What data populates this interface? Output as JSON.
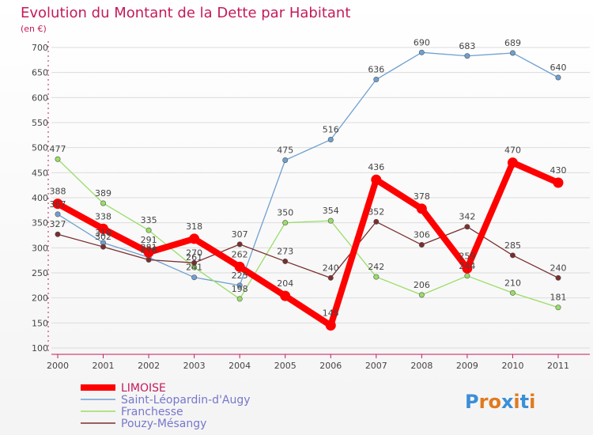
{
  "chart_data": {
    "type": "line",
    "title": "Evolution du Montant de la Dette par Habitant",
    "subtitle": "(en €)",
    "x": [
      "2000",
      "2001",
      "2002",
      "2003",
      "2004",
      "2005",
      "2006",
      "2007",
      "2008",
      "2009",
      "2010",
      "2011"
    ],
    "ylim": [
      100,
      700
    ],
    "yticks": [
      100,
      150,
      200,
      250,
      300,
      350,
      400,
      450,
      500,
      550,
      600,
      650,
      700
    ],
    "grid": "horizontal",
    "legend_position": "bottom-left",
    "series": [
      {
        "name": "Saint-Léopardin-d'Augy",
        "color": "#6fa0d0",
        "values": [
          367,
          310,
          281,
          241,
          225,
          475,
          516,
          636,
          690,
          683,
          689,
          640
        ],
        "labels": [
          "367",
          "310",
          "281",
          "241",
          "225",
          "475",
          "516",
          "636",
          "690",
          "683",
          "689",
          "640"
        ]
      },
      {
        "name": "Franchesse",
        "color": "#99dd66",
        "values": [
          477,
          389,
          335,
          261,
          198,
          350,
          354,
          242,
          206,
          244,
          210,
          181
        ],
        "labels": [
          "477",
          "389",
          "335",
          "261",
          "198",
          "350",
          "354",
          "242",
          "206",
          "244",
          "210",
          "181"
        ]
      },
      {
        "name": "Pouzy-Mésangy",
        "color": "#7a2e2e",
        "values": [
          327,
          302,
          276,
          270,
          307,
          273,
          240,
          352,
          306,
          342,
          285,
          240
        ],
        "labels": [
          "327",
          "302",
          "276",
          "270",
          "307",
          "273",
          "240",
          "352",
          "306",
          "342",
          "285",
          "240"
        ]
      },
      {
        "name": "LIMOISE",
        "color": "#ff0000",
        "values": [
          388,
          338,
          291,
          318,
          262,
          204,
          145,
          436,
          378,
          259,
          470,
          430
        ],
        "labels": [
          "388",
          "338",
          "291",
          "318",
          "262",
          "204",
          "145",
          "436",
          "378",
          "259",
          "470",
          "430"
        ]
      }
    ],
    "legend_order": [
      "LIMOISE",
      "Saint-Léopardin-d'Augy",
      "Franchesse",
      "Pouzy-Mésangy"
    ]
  },
  "logo": {
    "text": "Proxiti",
    "letters": [
      "P",
      "r",
      "o",
      "x",
      "i",
      "t",
      "i"
    ],
    "colors": [
      "#3a8fd8",
      "#e07a1f",
      "#e07a1f",
      "#3a8fd8",
      "#e07a1f",
      "#3a8fd8",
      "#e07a1f"
    ]
  }
}
